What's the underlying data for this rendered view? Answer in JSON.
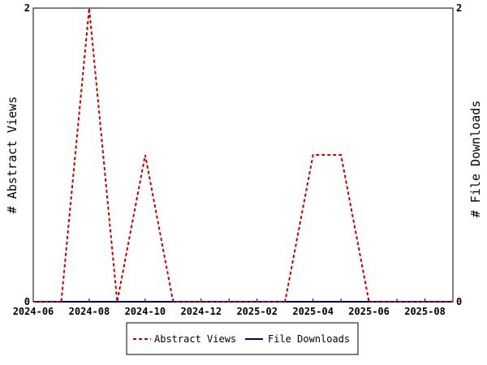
{
  "chart_data": {
    "type": "line",
    "x": [
      "2024-06",
      "2024-07",
      "2024-08",
      "2024-09",
      "2024-10",
      "2024-11",
      "2024-12",
      "2025-01",
      "2025-02",
      "2025-03",
      "2025-04",
      "2025-05",
      "2025-06",
      "2025-07",
      "2025-08",
      "2025-09"
    ],
    "x_tick_labels": [
      "2024-06",
      "2024-08",
      "2024-10",
      "2024-12",
      "2025-02",
      "2025-04",
      "2025-06",
      "2025-08"
    ],
    "ylabel_left": "# Abstract Views",
    "ylabel_right": "# File Downloads",
    "ylim_left": [
      0,
      2
    ],
    "ylim_right": [
      0,
      2
    ],
    "y_tick_labels_left": [
      "0",
      "2"
    ],
    "y_tick_labels_right": [
      "0",
      "2"
    ],
    "grid": false,
    "legend_position": "bottom",
    "series": [
      {
        "name": "Abstract Views",
        "axis": "left",
        "style": "dashed",
        "color": "#cc0000",
        "values": [
          0,
          0,
          2,
          0,
          1,
          0,
          0,
          0,
          0,
          0,
          1,
          1,
          0,
          0,
          0,
          0
        ]
      },
      {
        "name": "File Downloads",
        "axis": "right",
        "style": "solid",
        "color": "#000099",
        "values": [
          0,
          0,
          0,
          0,
          0,
          0,
          0,
          0,
          0,
          0,
          0,
          0,
          0,
          0,
          0,
          0
        ]
      }
    ]
  }
}
